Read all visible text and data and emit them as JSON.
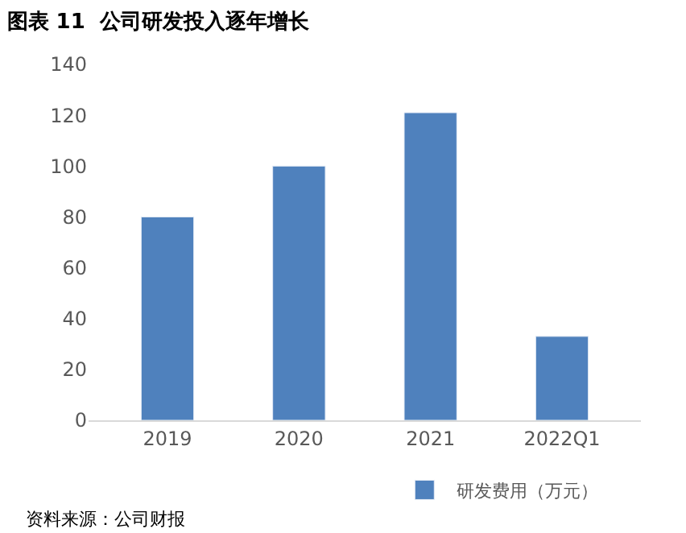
{
  "chart_data": {
    "type": "bar",
    "title": "图表 11  公司研发投入逐年增长",
    "categories": [
      "2019",
      "2020",
      "2021",
      "2022Q1"
    ],
    "series": [
      {
        "name": "研发费用（万元）",
        "color": "#4f81bd",
        "values": [
          80,
          100,
          121,
          33
        ]
      }
    ],
    "ylim": [
      0,
      140
    ],
    "yticks": [
      0,
      20,
      40,
      60,
      80,
      100,
      120,
      140
    ],
    "legend": "bottom",
    "annotations": [
      "资料来源：公司财报"
    ]
  }
}
